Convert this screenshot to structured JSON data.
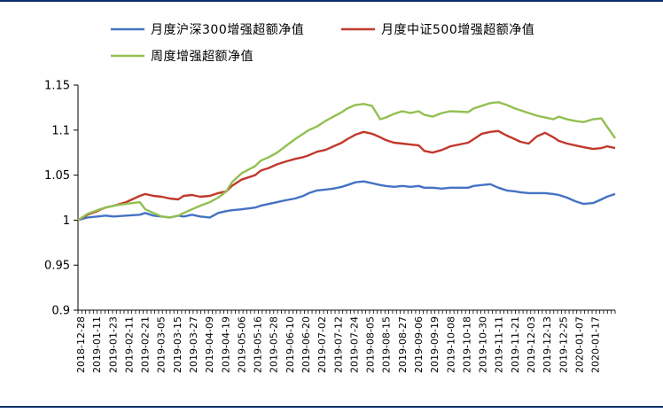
{
  "chart_data": {
    "type": "line",
    "ylim": [
      0.9,
      1.15
    ],
    "yticks": [
      "0.9",
      "0.95",
      "1",
      "1.05",
      "1.1",
      "1.15"
    ],
    "ytick_values": [
      0.9,
      0.95,
      1.0,
      1.05,
      1.1,
      1.15
    ],
    "grid": false,
    "legend_position": "top",
    "x_labels": [
      "2018-12-28",
      "2019-01-11",
      "2019-01-23",
      "2019-02-11",
      "2019-02-21",
      "2019-03-05",
      "2019-03-15",
      "2019-03-27",
      "2019-04-09",
      "2019-04-19",
      "2019-05-06",
      "2019-05-16",
      "2019-05-28",
      "2019-06-10",
      "2019-06-20",
      "2019-07-02",
      "2019-07-12",
      "2019-07-24",
      "2019-08-05",
      "2019-08-15",
      "2019-08-27",
      "2019-09-06",
      "2019-09-19",
      "2019-10-08",
      "2019-10-18",
      "2019-10-30",
      "2019-11-11",
      "2019-11-21",
      "2019-12-03",
      "2019-12-13",
      "2019-12-25",
      "2020-01-07",
      "2020-01-17"
    ],
    "x": [
      "2018-12-28",
      "2019-01-04",
      "2019-01-11",
      "2019-01-17",
      "2019-01-23",
      "2019-02-01",
      "2019-02-11",
      "2019-02-15",
      "2019-02-21",
      "2019-02-27",
      "2019-03-05",
      "2019-03-11",
      "2019-03-15",
      "2019-03-21",
      "2019-03-27",
      "2019-04-03",
      "2019-04-09",
      "2019-04-15",
      "2019-04-19",
      "2019-04-26",
      "2019-05-06",
      "2019-05-10",
      "2019-05-16",
      "2019-05-22",
      "2019-05-28",
      "2019-06-04",
      "2019-06-10",
      "2019-06-14",
      "2019-06-20",
      "2019-06-26",
      "2019-07-02",
      "2019-07-08",
      "2019-07-12",
      "2019-07-18",
      "2019-07-24",
      "2019-07-30",
      "2019-08-05",
      "2019-08-09",
      "2019-08-15",
      "2019-08-21",
      "2019-08-27",
      "2019-09-02",
      "2019-09-06",
      "2019-09-12",
      "2019-09-19",
      "2019-09-25",
      "2019-10-08",
      "2019-10-12",
      "2019-10-18",
      "2019-10-24",
      "2019-10-30",
      "2019-11-05",
      "2019-11-11",
      "2019-11-15",
      "2019-11-21",
      "2019-11-27",
      "2019-12-03",
      "2019-12-09",
      "2019-12-13",
      "2019-12-19",
      "2019-12-25",
      "2019-12-31",
      "2020-01-07",
      "2020-01-13",
      "2020-01-17",
      "2020-01-23"
    ],
    "series": [
      {
        "name": "月度沪深300增强超额净值",
        "color": "#4472C4",
        "values": [
          1.0,
          1.003,
          1.004,
          1.005,
          1.004,
          1.005,
          1.006,
          1.008,
          1.005,
          1.004,
          1.003,
          1.005,
          1.004,
          1.006,
          1.004,
          1.003,
          1.008,
          1.01,
          1.011,
          1.012,
          1.014,
          1.016,
          1.018,
          1.02,
          1.022,
          1.024,
          1.027,
          1.03,
          1.033,
          1.034,
          1.035,
          1.037,
          1.039,
          1.042,
          1.043,
          1.041,
          1.039,
          1.038,
          1.037,
          1.038,
          1.037,
          1.038,
          1.036,
          1.036,
          1.035,
          1.036,
          1.036,
          1.038,
          1.039,
          1.04,
          1.036,
          1.033,
          1.032,
          1.031,
          1.03,
          1.03,
          1.03,
          1.029,
          1.028,
          1.025,
          1.021,
          1.018,
          1.019,
          1.023,
          1.026,
          1.029
        ]
      },
      {
        "name": "月度中证500增强超额净值",
        "color": "#C0392B",
        "values": [
          1.0,
          1.006,
          1.01,
          1.014,
          1.016,
          1.02,
          1.027,
          1.029,
          1.027,
          1.026,
          1.024,
          1.023,
          1.027,
          1.028,
          1.026,
          1.027,
          1.03,
          1.032,
          1.038,
          1.045,
          1.05,
          1.055,
          1.058,
          1.062,
          1.065,
          1.068,
          1.07,
          1.072,
          1.076,
          1.078,
          1.082,
          1.086,
          1.09,
          1.095,
          1.098,
          1.096,
          1.092,
          1.089,
          1.086,
          1.085,
          1.084,
          1.083,
          1.077,
          1.075,
          1.078,
          1.082,
          1.086,
          1.09,
          1.096,
          1.098,
          1.099,
          1.094,
          1.09,
          1.087,
          1.085,
          1.093,
          1.097,
          1.092,
          1.088,
          1.085,
          1.083,
          1.081,
          1.079,
          1.08,
          1.082,
          1.08
        ]
      },
      {
        "name": "周度增强超额净值",
        "color": "#92C050",
        "values": [
          1.0,
          1.007,
          1.011,
          1.014,
          1.016,
          1.018,
          1.02,
          1.012,
          1.008,
          1.004,
          1.003,
          1.005,
          1.008,
          1.012,
          1.016,
          1.02,
          1.025,
          1.032,
          1.042,
          1.052,
          1.06,
          1.066,
          1.07,
          1.075,
          1.082,
          1.09,
          1.096,
          1.1,
          1.104,
          1.11,
          1.115,
          1.12,
          1.124,
          1.128,
          1.129,
          1.127,
          1.112,
          1.114,
          1.118,
          1.121,
          1.119,
          1.121,
          1.117,
          1.115,
          1.119,
          1.121,
          1.12,
          1.124,
          1.127,
          1.13,
          1.131,
          1.128,
          1.124,
          1.122,
          1.119,
          1.116,
          1.114,
          1.112,
          1.115,
          1.112,
          1.11,
          1.109,
          1.112,
          1.113,
          1.104,
          1.091
        ]
      }
    ]
  }
}
